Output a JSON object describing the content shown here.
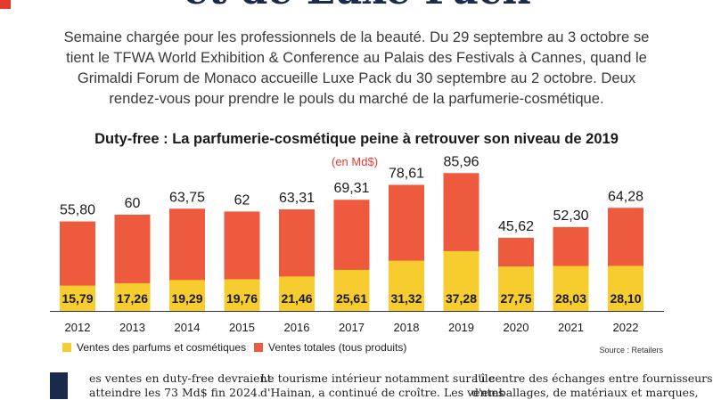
{
  "article": {
    "headline": "et de Luxe Pack",
    "intro": "Semaine chargée pour les professionnels de la beauté. Du 29 septembre au 3 octobre se tient le TFWA World Exhibition & Conference au Palais des Festivals à Cannes, quand le Grimaldi Forum de Monaco accueille Luxe Pack du 30 septembre au 2 octobre. Deux rendez-vous pour prendre le pouls du marché de la parfumerie-cosmétique.",
    "col1": "es ventes en duty-free devraient",
    "col1b": "atteindre les 73 Md$ fin 2024.",
    "col2": "Le tourisme intérieur notamment sur l'île",
    "col2b": "d'Hainan, a continué de croître. Les ventes",
    "col3": "au centre des échanges entre fournisseurs",
    "col3b": "d'emballages, de matériaux et marques,"
  },
  "chart_data": {
    "type": "bar",
    "title": "Duty-free : La parfumerie-cosmétique peine à retrouver son niveau de 2019",
    "unit": "(en Md$)",
    "categories": [
      "2012",
      "2013",
      "2014",
      "2015",
      "2016",
      "2017",
      "2018",
      "2019",
      "2020",
      "2021",
      "2022"
    ],
    "series": [
      {
        "name": "Ventes totales (tous produits)",
        "color": "#ee5a3e",
        "values": [
          55.8,
          60,
          63.75,
          62,
          63.31,
          69.31,
          78.61,
          85.96,
          45.62,
          52.3,
          64.28
        ],
        "labels": [
          "55,80",
          "60",
          "63,75",
          "62",
          "63,31",
          "69,31",
          "78,61",
          "85,96",
          "45,62",
          "52,30",
          "64,28"
        ]
      },
      {
        "name": "Ventes des parfums et cosmétiques",
        "color": "#f7cc2e",
        "values": [
          15.79,
          17.26,
          19.29,
          19.76,
          21.46,
          25.61,
          31.32,
          37.28,
          27.75,
          28.03,
          28.1
        ],
        "labels": [
          "15,79",
          "17,26",
          "19,29",
          "19,76",
          "21,46",
          "25,61",
          "31,32",
          "37,28",
          "27,75",
          "28,03",
          "28,10"
        ]
      }
    ],
    "legend_position": "bottom-left",
    "source": "Source : Retailers"
  }
}
